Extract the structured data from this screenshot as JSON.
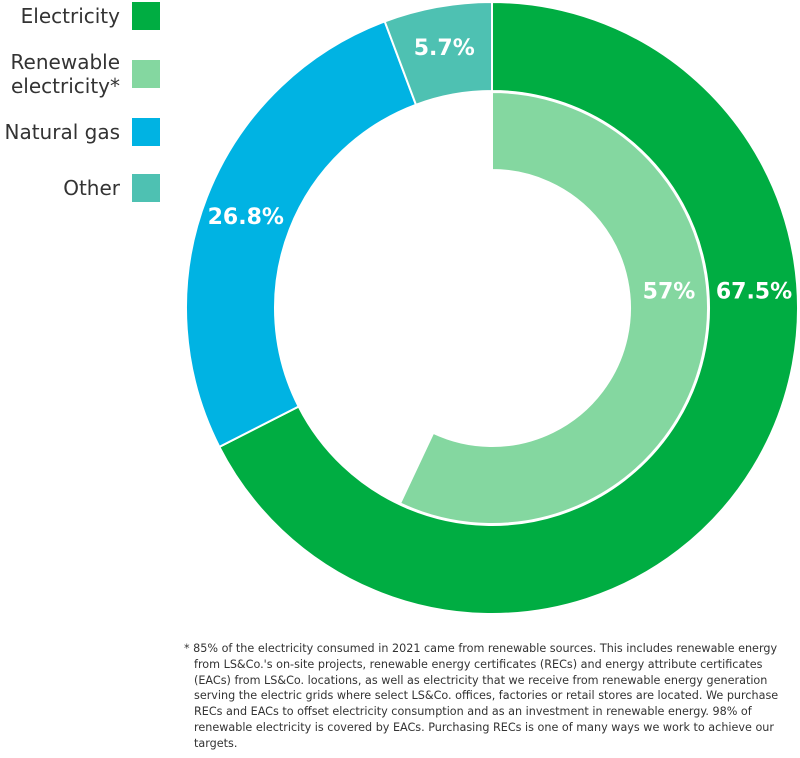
{
  "chart_data": {
    "type": "pie",
    "variant": "nested-donut",
    "outer_ring": [
      {
        "name": "Electricity",
        "value": 67.5,
        "label": "67.5%",
        "color": "#00AD42"
      },
      {
        "name": "Natural gas",
        "value": 26.8,
        "label": "26.8%",
        "color": "#00B3E3"
      },
      {
        "name": "Other",
        "value": 5.7,
        "label": "5.7%",
        "color": "#4EC1B2"
      }
    ],
    "inner_ring": [
      {
        "name": "Renewable electricity*",
        "value": 57,
        "label": "57%",
        "color": "#84D7A0"
      }
    ],
    "legend": [
      {
        "label": "Electricity",
        "color": "#00AD42"
      },
      {
        "label": "Renewable\nelectricity*",
        "color": "#84D7A0"
      },
      {
        "label": "Natural gas",
        "color": "#00B3E3"
      },
      {
        "label": "Other",
        "color": "#4EC1B2"
      }
    ],
    "legend_position": "top-left"
  },
  "footnote": "* 85% of the electricity consumed in 2021 came from renewable sources. This includes renewable energy from LS&Co.'s on-site projects, renewable energy certificates (RECs) and energy attribute certificates (EACs) from LS&Co. locations, as well as electricity that we receive from renewable energy generation serving the electric grids where select LS&Co. offices, factories or retail stores are located. We purchase RECs and EACs to offset electricity consumption and as an investment in renewable energy. 98% of renewable electricity is covered by EACs. Purchasing RECs is one of many ways we work to achieve our targets."
}
